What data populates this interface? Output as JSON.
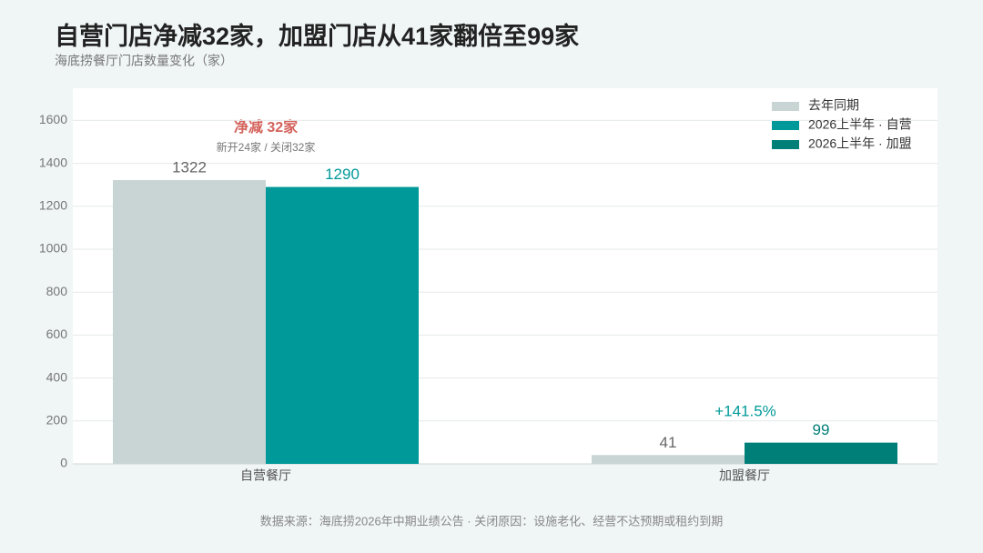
{
  "chart_data": {
    "type": "bar",
    "title": "自营门店净减32家，加盟门店从41家翻倍至99家",
    "subtitle": "海底捞餐厅门店数量变化（家）",
    "categories": [
      "自营餐厅",
      "加盟餐厅"
    ],
    "series": [
      {
        "name": "去年同期",
        "color": "#c9d4d4",
        "values": [
          1322,
          41
        ]
      },
      {
        "name": "2026上半年 · 自营",
        "color": "#009999",
        "values": [
          1290,
          null
        ]
      },
      {
        "name": "2026上半年 · 加盟",
        "color": "#007f78",
        "values": [
          null,
          99
        ]
      }
    ],
    "ylim": [
      0,
      1750
    ],
    "yticks": [
      0,
      200,
      400,
      600,
      800,
      1000,
      1200,
      1400,
      1600
    ],
    "grid": true,
    "legend": "top-right",
    "annotations": [
      "净减 32家",
      "新开24家 / 关闭32家",
      "+141.5%"
    ],
    "source": "数据来源：海底捞2026年中期业绩公告 · 关闭原因：设施老化、经营不达预期或租约到期"
  }
}
